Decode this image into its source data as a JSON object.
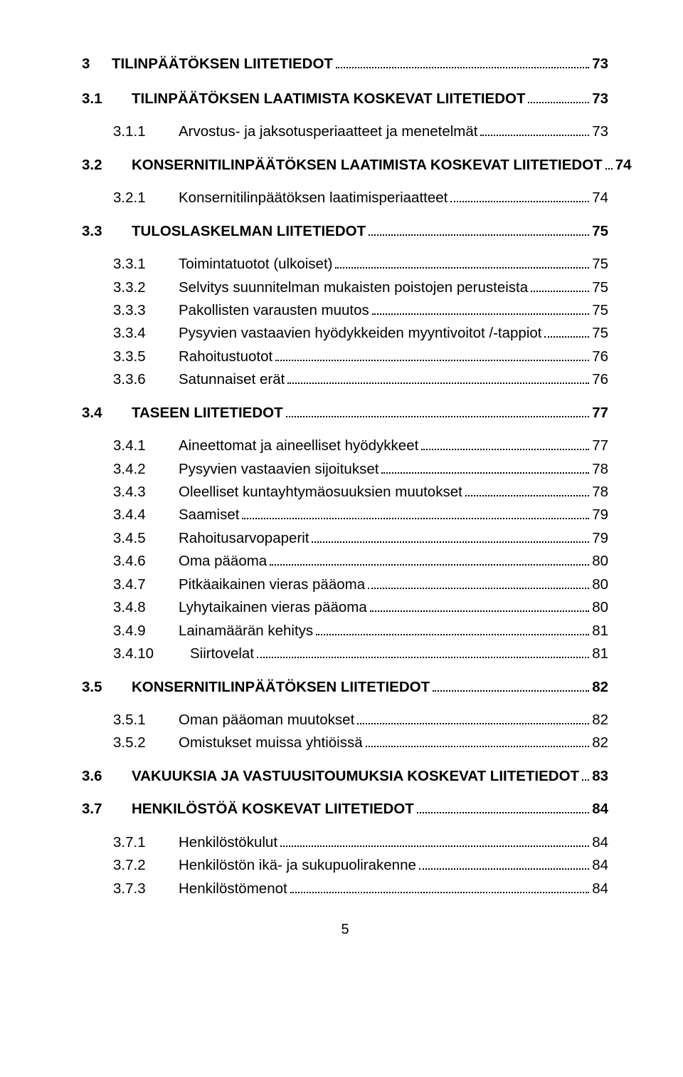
{
  "footer_page": "5",
  "items": [
    {
      "level": 1,
      "num": "3",
      "title": "TILINPÄÄTÖKSEN LIITETIEDOT",
      "page": "73"
    },
    {
      "level": 2,
      "num": "3.1",
      "title": "TILINPÄÄTÖKSEN LAATIMISTA KOSKEVAT LIITETIEDOT",
      "page": "73"
    },
    {
      "level": 3,
      "num": "3.1.1",
      "title": "Arvostus- ja jaksotusperiaatteet ja menetelmät",
      "page": "73"
    },
    {
      "level": 2,
      "num": "3.2",
      "title": "KONSERNITILINPÄÄTÖKSEN LAATIMISTA KOSKEVAT LIITETIEDOT",
      "page": "74"
    },
    {
      "level": 3,
      "num": "3.2.1",
      "title": "Konsernitilinpäätöksen laatimisperiaatteet",
      "page": "74"
    },
    {
      "level": 2,
      "num": "3.3",
      "title": "TULOSLASKELMAN LIITETIEDOT",
      "page": "75"
    },
    {
      "level": 3,
      "num": "3.3.1",
      "title": "Toimintatuotot (ulkoiset)",
      "page": "75"
    },
    {
      "level": 3,
      "num": "3.3.2",
      "title": "Selvitys suunnitelman mukaisten poistojen perusteista",
      "page": "75"
    },
    {
      "level": 3,
      "num": "3.3.3",
      "title": "Pakollisten varausten muutos",
      "page": "75"
    },
    {
      "level": 3,
      "num": "3.3.4",
      "title": "Pysyvien vastaavien hyödykkeiden myyntivoitot /-tappiot",
      "page": "75"
    },
    {
      "level": 3,
      "num": "3.3.5",
      "title": "Rahoitustuotot",
      "page": "76"
    },
    {
      "level": 3,
      "num": "3.3.6",
      "title": "Satunnaiset erät",
      "page": "76"
    },
    {
      "level": 2,
      "num": "3.4",
      "title": "TASEEN LIITETIEDOT",
      "page": "77"
    },
    {
      "level": 3,
      "num": "3.4.1",
      "title": "Aineettomat ja aineelliset hyödykkeet",
      "page": "77"
    },
    {
      "level": 3,
      "num": "3.4.2",
      "title": "Pysyvien vastaavien sijoitukset",
      "page": "78"
    },
    {
      "level": 3,
      "num": "3.4.3",
      "title": "Oleelliset kuntayhtymäosuuksien muutokset",
      "page": "78"
    },
    {
      "level": 3,
      "num": "3.4.4",
      "title": "Saamiset",
      "page": "79"
    },
    {
      "level": 3,
      "num": "3.4.5",
      "title": "Rahoitusarvopaperit",
      "page": "79"
    },
    {
      "level": 3,
      "num": "3.4.6",
      "title": "Oma pääoma",
      "page": "80"
    },
    {
      "level": 3,
      "num": "3.4.7",
      "title": "Pitkäaikainen vieras pääoma",
      "page": "80"
    },
    {
      "level": 3,
      "num": "3.4.8",
      "title": "Lyhytaikainen vieras pääoma",
      "page": "80"
    },
    {
      "level": 3,
      "num": "3.4.9",
      "title": "Lainamäärän kehitys",
      "page": "81"
    },
    {
      "level": 3,
      "wide": true,
      "num": "3.4.10",
      "title": "Siirtovelat",
      "page": "81"
    },
    {
      "level": 2,
      "num": "3.5",
      "title": "KONSERNITILINPÄÄTÖKSEN LIITETIEDOT",
      "page": "82"
    },
    {
      "level": 3,
      "num": "3.5.1",
      "title": "Oman pääoman muutokset",
      "page": "82"
    },
    {
      "level": 3,
      "num": "3.5.2",
      "title": "Omistukset muissa yhtiöissä",
      "page": "82"
    },
    {
      "level": 2,
      "num": "3.6",
      "title": "VAKUUKSIA JA VASTUUSITOUMUKSIA KOSKEVAT LIITETIEDOT",
      "page": "83"
    },
    {
      "level": 2,
      "num": "3.7",
      "title": "HENKILÖSTÖÄ KOSKEVAT LIITETIEDOT",
      "page": "84"
    },
    {
      "level": 3,
      "num": "3.7.1",
      "title": "Henkilöstökulut",
      "page": "84"
    },
    {
      "level": 3,
      "num": "3.7.2",
      "title": "Henkilöstön ikä- ja sukupuolirakenne",
      "page": "84"
    },
    {
      "level": 3,
      "num": "3.7.3",
      "title": "Henkilöstömenot",
      "page": "84"
    }
  ]
}
